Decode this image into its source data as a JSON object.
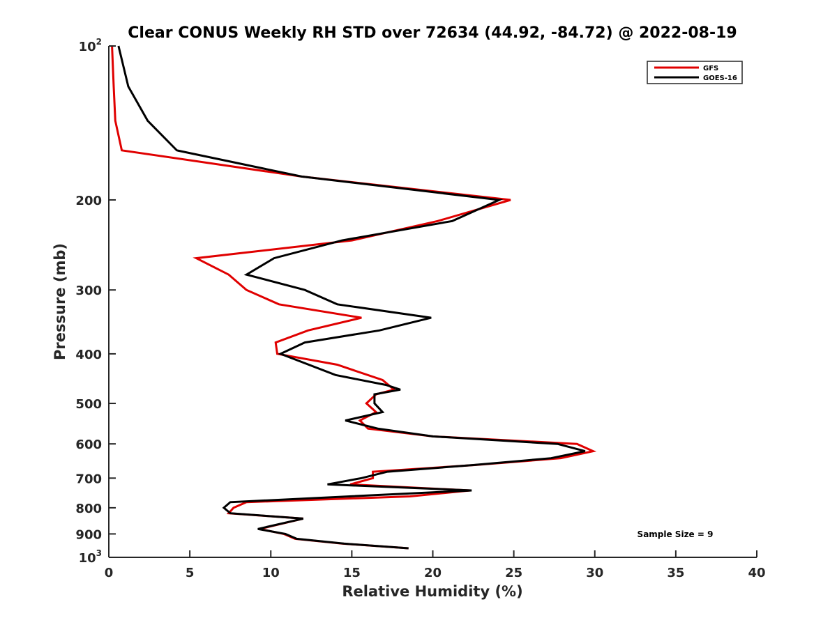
{
  "chart_data": {
    "type": "line",
    "title": "Clear CONUS Weekly RH STD over 72634 (44.92, -84.72) @ 2022-08-19",
    "xlabel": "Relative Humidity (%)",
    "ylabel": "Pressure (mb)",
    "xlim": [
      0,
      40
    ],
    "ylim": [
      100,
      1000
    ],
    "yscale": "log",
    "y_reversed": true,
    "grid": false,
    "x_ticks": [
      0,
      5,
      10,
      15,
      20,
      25,
      30,
      35,
      40
    ],
    "x_tick_labels": [
      "0",
      "5",
      "10",
      "15",
      "20",
      "25",
      "30",
      "35",
      "40"
    ],
    "y_ticks": [
      100,
      200,
      300,
      400,
      500,
      600,
      700,
      800,
      900,
      1000
    ],
    "y_tick_labels": [
      {
        "base": "10",
        "sup": "2"
      },
      {
        "base": "200",
        "sup": ""
      },
      {
        "base": "300",
        "sup": ""
      },
      {
        "base": "400",
        "sup": ""
      },
      {
        "base": "500",
        "sup": ""
      },
      {
        "base": "600",
        "sup": ""
      },
      {
        "base": "700",
        "sup": ""
      },
      {
        "base": "800",
        "sup": ""
      },
      {
        "base": "900",
        "sup": ""
      },
      {
        "base": "10",
        "sup": "3"
      }
    ],
    "legend": {
      "placement": "top-right",
      "entries": [
        "GFS",
        "GOES-16"
      ]
    },
    "annotation": "Sample Size = 9",
    "series": [
      {
        "name": "GFS",
        "color": "#e00000",
        "points": [
          [
            0.2,
            100
          ],
          [
            0.3,
            120
          ],
          [
            0.4,
            140
          ],
          [
            0.8,
            160
          ],
          [
            11.9,
            180
          ],
          [
            24.8,
            200
          ],
          [
            20.3,
            220
          ],
          [
            15.0,
            240
          ],
          [
            5.4,
            260
          ],
          [
            7.4,
            280
          ],
          [
            8.5,
            300
          ],
          [
            10.5,
            320
          ],
          [
            15.6,
            340
          ],
          [
            12.3,
            360
          ],
          [
            10.3,
            380
          ],
          [
            10.4,
            400
          ],
          [
            14.1,
            420
          ],
          [
            16.9,
            450
          ],
          [
            17.6,
            470
          ],
          [
            16.5,
            480
          ],
          [
            15.9,
            500
          ],
          [
            16.5,
            520
          ],
          [
            15.5,
            540
          ],
          [
            16.0,
            560
          ],
          [
            20.0,
            580
          ],
          [
            28.9,
            600
          ],
          [
            29.9,
            620
          ],
          [
            27.9,
            640
          ],
          [
            22.6,
            660
          ],
          [
            16.3,
            680
          ],
          [
            16.3,
            700
          ],
          [
            14.9,
            720
          ],
          [
            22.3,
            740
          ],
          [
            18.6,
            760
          ],
          [
            8.5,
            780
          ],
          [
            7.7,
            800
          ],
          [
            7.4,
            820
          ],
          [
            12.0,
            840
          ],
          [
            9.3,
            880
          ],
          [
            10.8,
            900
          ],
          [
            11.5,
            920
          ],
          [
            14.4,
            940
          ],
          [
            18.5,
            960
          ]
        ]
      },
      {
        "name": "GOES-16",
        "color": "#000000",
        "points": [
          [
            0.6,
            100
          ],
          [
            1.2,
            120
          ],
          [
            2.4,
            140
          ],
          [
            4.2,
            160
          ],
          [
            11.9,
            180
          ],
          [
            24.1,
            200
          ],
          [
            21.2,
            220
          ],
          [
            14.4,
            240
          ],
          [
            10.2,
            260
          ],
          [
            8.5,
            280
          ],
          [
            12.1,
            300
          ],
          [
            14.1,
            320
          ],
          [
            19.9,
            340
          ],
          [
            16.7,
            360
          ],
          [
            12.1,
            380
          ],
          [
            10.6,
            400
          ],
          [
            14.0,
            440
          ],
          [
            17.1,
            460
          ],
          [
            18.0,
            470
          ],
          [
            16.4,
            480
          ],
          [
            16.4,
            500
          ],
          [
            16.9,
            520
          ],
          [
            14.6,
            540
          ],
          [
            16.6,
            560
          ],
          [
            20.0,
            580
          ],
          [
            27.7,
            600
          ],
          [
            29.4,
            620
          ],
          [
            27.3,
            640
          ],
          [
            22.5,
            660
          ],
          [
            17.2,
            680
          ],
          [
            15.6,
            700
          ],
          [
            13.5,
            720
          ],
          [
            22.4,
            740
          ],
          [
            7.5,
            780
          ],
          [
            7.1,
            800
          ],
          [
            7.5,
            820
          ],
          [
            12.0,
            840
          ],
          [
            9.2,
            880
          ],
          [
            10.9,
            900
          ],
          [
            11.6,
            920
          ],
          [
            14.5,
            940
          ],
          [
            18.5,
            960
          ]
        ]
      }
    ]
  }
}
